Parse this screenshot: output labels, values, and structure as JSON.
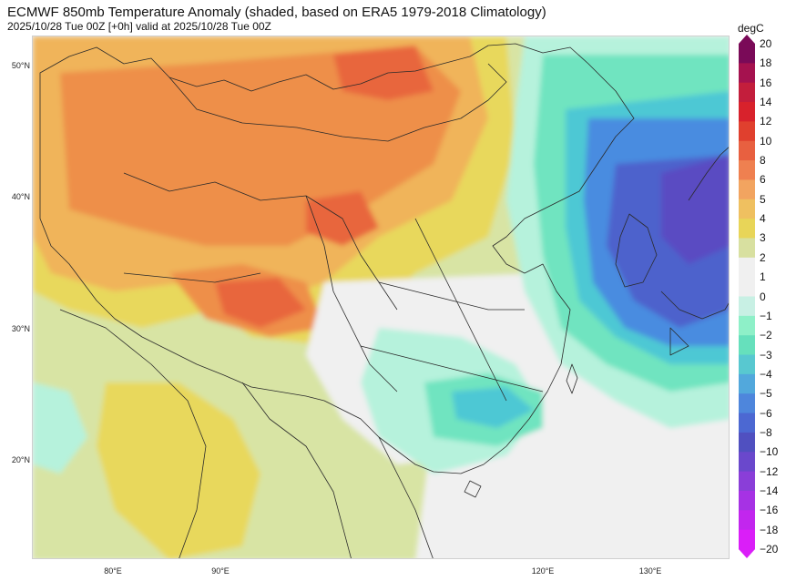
{
  "title": "ECMWF 850mb Temperature Anomaly (shaded, based on ERA5 1979-2018 Climatology)",
  "subtitle": "2025/10/28 Tue 00Z [+0h] valid at 2025/10/28 Tue 00Z",
  "colorbar": {
    "unit": "degC",
    "levels": [
      "20",
      "18",
      "16",
      "14",
      "12",
      "10",
      "8",
      "6",
      "5",
      "4",
      "3",
      "2",
      "1",
      "0",
      "−1",
      "−2",
      "−3",
      "−4",
      "−5",
      "−6",
      "−8",
      "−10",
      "−12",
      "−14",
      "−16",
      "−18",
      "−20"
    ],
    "colors": [
      "#7a0a58",
      "#a5124f",
      "#c31e3c",
      "#d8222c",
      "#e0402e",
      "#e86040",
      "#ef8050",
      "#f2a460",
      "#efc060",
      "#e8d558",
      "#d8e0a0",
      "#f0f0f0",
      "#f0f0f0",
      "#c8f0e4",
      "#8ef0c8",
      "#66e0bc",
      "#58c8d0",
      "#52a8dc",
      "#4e86dc",
      "#4c68d2",
      "#5050c0",
      "#6a48cc",
      "#8a3ed8",
      "#a632e4",
      "#c226ee",
      "#da1ef8"
    ]
  },
  "lat_labels": [
    "50°N",
    "40°N",
    "30°N",
    "20°N"
  ],
  "lon_labels": [
    "80°E",
    "90°E",
    "120°E",
    "130°E"
  ],
  "field_colors": {
    "neutral": "#f0f0f0",
    "pos1": "#d8e4a4",
    "pos2": "#e8d85c",
    "pos3": "#f0b45a",
    "pos4": "#ee8f4a",
    "pos5": "#e8663e",
    "neg1": "#b6f2dc",
    "neg2": "#70e4c0",
    "neg3": "#4ec8d4",
    "neg4": "#4a8ce0",
    "neg5": "#4e62cc",
    "neg6": "#5a4cc2"
  }
}
